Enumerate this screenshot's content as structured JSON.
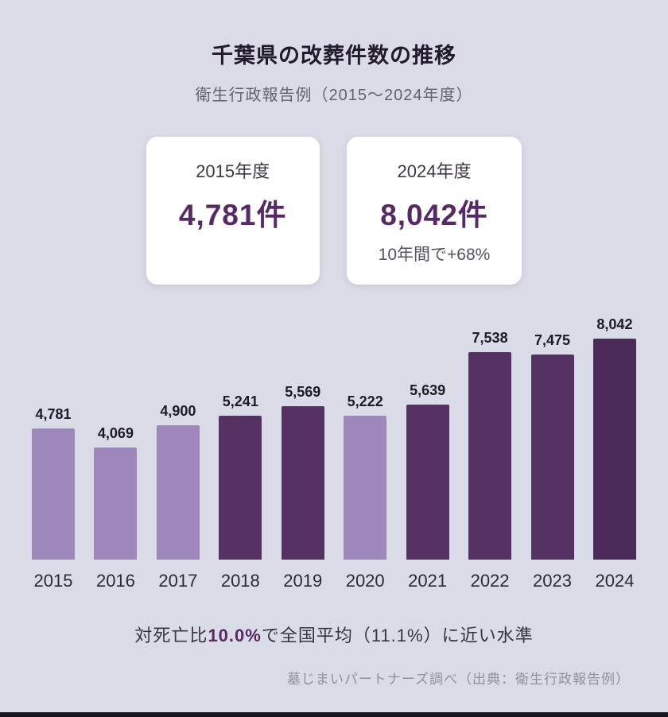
{
  "header": {
    "title": "千葉県の改葬件数の推移",
    "subtitle": "衛生行政報告例（2015〜2024年度）"
  },
  "summary_cards": [
    {
      "label": "2015年度",
      "value": "4,781件"
    },
    {
      "label": "2024年度",
      "value": "8,042件",
      "note": "10年間で+68%"
    }
  ],
  "chart_data": {
    "type": "bar",
    "title": "千葉県の改葬件数の推移",
    "categories": [
      "2015",
      "2016",
      "2017",
      "2018",
      "2019",
      "2020",
      "2021",
      "2022",
      "2023",
      "2024"
    ],
    "values": [
      4781,
      4069,
      4900,
      5241,
      5569,
      5222,
      5639,
      7538,
      7475,
      8042
    ],
    "value_labels": [
      "4,781",
      "4,069",
      "4,900",
      "5,241",
      "5,569",
      "5,222",
      "5,639",
      "7,538",
      "7,475",
      "8,042"
    ],
    "bar_colors": [
      "#9e87ba",
      "#9e87ba",
      "#9e87ba",
      "#563264",
      "#563264",
      "#9e87ba",
      "#563264",
      "#563264",
      "#563264",
      "#4c2a59"
    ],
    "xlabel": "",
    "ylabel": "",
    "ylim": [
      0,
      8042
    ],
    "grid": false,
    "legend": false
  },
  "note": {
    "prefix": "対死亡比",
    "highlight": "10.0%",
    "suffix": "で全国平均（11.1%）に近い水準"
  },
  "footer": {
    "source": "墓じまいパートナーズ調べ（出典：衛生行政報告例）"
  },
  "colors": {
    "background": "#d9dbe6",
    "bar_light": "#9e87ba",
    "bar_dark": "#563264",
    "accent_purple": "#562a64"
  }
}
